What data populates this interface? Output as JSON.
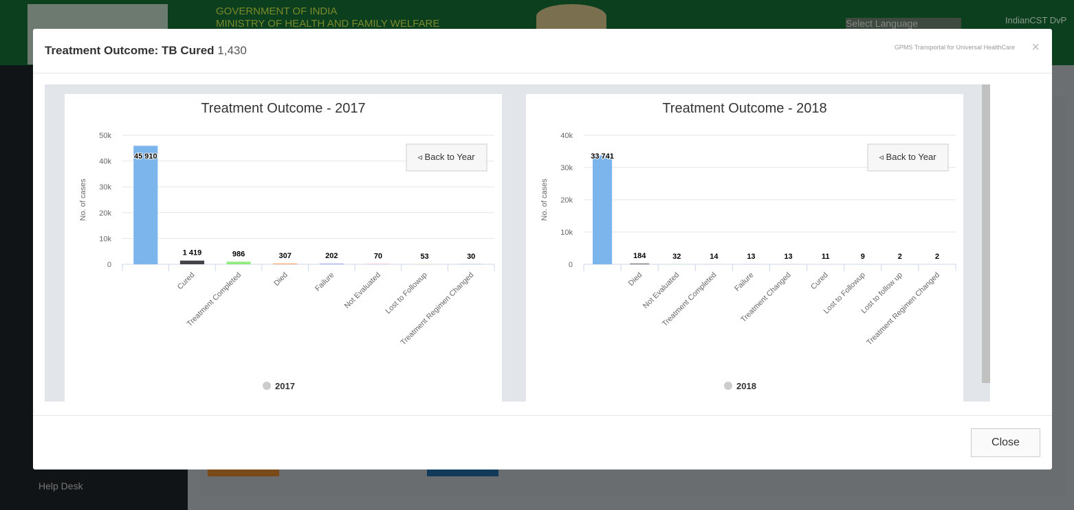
{
  "header": {
    "line1": "GOVERNMENT OF INDIA",
    "line2": "MINISTRY OF HEALTH AND FAMILY WELFARE",
    "language": "Select Language",
    "user": "IndianCST DvP"
  },
  "sidebar": {
    "help": "Help Desk"
  },
  "modal": {
    "title": "Treatment Outcome: TB Cured",
    "count": "1,430",
    "brand": "GPMS Transportal for Universal HealthCare",
    "close_icon": "×",
    "close_button": "Close"
  },
  "chart_data": [
    {
      "type": "bar",
      "title": "Treatment Outcome - 2017",
      "ylabel": "No. of cases",
      "button": "◃ Back to Year",
      "categories": [
        null,
        "Cured",
        "Treatment Completed",
        "Died",
        "Failure",
        "Not Evaluated",
        "Lost to Followup",
        "Treatment Regimen Changed"
      ],
      "series": [
        {
          "name": "2017",
          "colors": [
            "#7cb5ec",
            "#434348",
            "#90ed7d",
            "#f7a35c",
            "#8085e9",
            "#f15c80",
            "#e4d354",
            "#2b908f"
          ],
          "values": [
            45910,
            1419,
            986,
            307,
            202,
            70,
            53,
            30
          ],
          "value_labels": [
            "45 910",
            "1 419",
            "986",
            "307",
            "202",
            "70",
            "53",
            "30"
          ]
        }
      ],
      "ylim": [
        0,
        50000
      ],
      "yticks": [
        0,
        {
          "value": 10000,
          "label": "10k"
        },
        {
          "value": 20000,
          "label": "20k"
        },
        {
          "value": 30000,
          "label": "30k"
        },
        {
          "value": 40000,
          "label": "40k"
        },
        {
          "value": 50000,
          "label": "50k"
        }
      ],
      "grid": true
    },
    {
      "type": "bar",
      "title": "Treatment Outcome - 2018",
      "ylabel": "No. of cases",
      "button": "◃ Back to Year",
      "categories": [
        null,
        "Died",
        "Not Evaluated",
        "Treatment Completed",
        "Failure",
        "Treatment Changed",
        "Cured",
        "Lost to Followup",
        "Lost to follow up",
        "Treatment Regimen Changed"
      ],
      "series": [
        {
          "name": "2018",
          "colors": [
            "#7cb5ec",
            "#434348",
            "#90ed7d",
            "#f7a35c",
            "#8085e9",
            "#f15c80",
            "#e4d354",
            "#2b908f",
            "#f45b5b",
            "#91e8e1"
          ],
          "values": [
            33741,
            184,
            32,
            14,
            13,
            13,
            11,
            9,
            2,
            2
          ],
          "value_labels": [
            "33 741",
            "184",
            "32",
            "14",
            "13",
            "13",
            "11",
            "9",
            "2",
            "2"
          ]
        }
      ],
      "ylim": [
        0,
        40000
      ],
      "yticks": [
        0,
        {
          "value": 10000,
          "label": "10k"
        },
        {
          "value": 20000,
          "label": "20k"
        },
        {
          "value": 30000,
          "label": "30k"
        },
        {
          "value": 40000,
          "label": "40k"
        }
      ],
      "grid": true
    }
  ]
}
